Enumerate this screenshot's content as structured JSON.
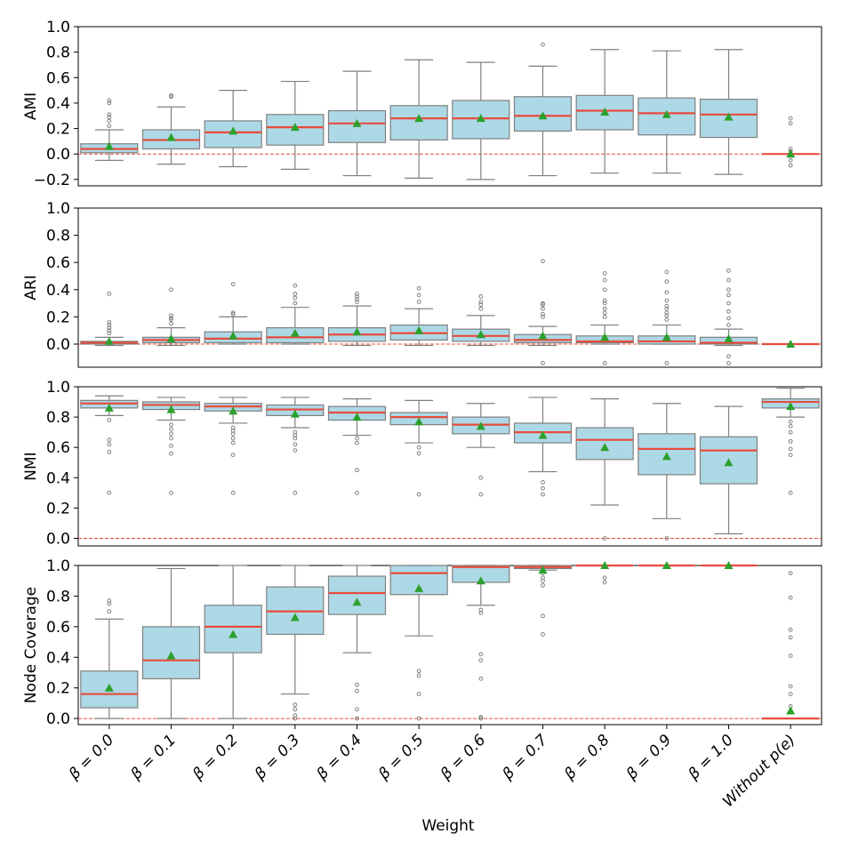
{
  "chart_data": {
    "type": "box",
    "xlabel": "Weight",
    "categories": [
      "β = 0.0",
      "β = 0.1",
      "β = 0.2",
      "β = 0.3",
      "β = 0.4",
      "β = 0.5",
      "β = 0.6",
      "β = 0.7",
      "β = 0.8",
      "β = 0.9",
      "β = 1.0",
      "Without p(e)"
    ],
    "colors": {
      "box_fill": "#add8e6",
      "box_edge": "#808080",
      "median": "#e74c3c",
      "mean": "#2ca02c",
      "refline": "#e74c3c",
      "outlier": "#808080"
    },
    "panels": [
      {
        "ylabel": "AMI",
        "ylim": [
          -0.25,
          1.0
        ],
        "yticks": [
          -0.2,
          0.0,
          0.2,
          0.4,
          0.6,
          0.8,
          1.0
        ],
        "tick_labels": [
          "−0.2",
          "0.0",
          "0.2",
          "0.4",
          "0.6",
          "0.8",
          "1.0"
        ],
        "boxes": [
          {
            "wlo": -0.05,
            "q1": 0.01,
            "med": 0.04,
            "q3": 0.08,
            "whi": 0.19,
            "mean": 0.06,
            "outliers": [
              0.22,
              0.26,
              0.29,
              0.31,
              0.4,
              0.42
            ]
          },
          {
            "wlo": -0.08,
            "q1": 0.04,
            "med": 0.11,
            "q3": 0.19,
            "whi": 0.37,
            "mean": 0.13,
            "outliers": [
              0.45,
              0.46
            ]
          },
          {
            "wlo": -0.1,
            "q1": 0.05,
            "med": 0.17,
            "q3": 0.26,
            "whi": 0.5,
            "mean": 0.18,
            "outliers": []
          },
          {
            "wlo": -0.12,
            "q1": 0.07,
            "med": 0.21,
            "q3": 0.31,
            "whi": 0.57,
            "mean": 0.21,
            "outliers": []
          },
          {
            "wlo": -0.17,
            "q1": 0.09,
            "med": 0.24,
            "q3": 0.34,
            "whi": 0.65,
            "mean": 0.24,
            "outliers": []
          },
          {
            "wlo": -0.19,
            "q1": 0.11,
            "med": 0.28,
            "q3": 0.38,
            "whi": 0.74,
            "mean": 0.28,
            "outliers": []
          },
          {
            "wlo": -0.2,
            "q1": 0.12,
            "med": 0.28,
            "q3": 0.42,
            "whi": 0.72,
            "mean": 0.28,
            "outliers": []
          },
          {
            "wlo": -0.17,
            "q1": 0.18,
            "med": 0.3,
            "q3": 0.45,
            "whi": 0.69,
            "mean": 0.3,
            "outliers": [
              0.86
            ]
          },
          {
            "wlo": -0.15,
            "q1": 0.19,
            "med": 0.34,
            "q3": 0.46,
            "whi": 0.82,
            "mean": 0.33,
            "outliers": []
          },
          {
            "wlo": -0.15,
            "q1": 0.15,
            "med": 0.32,
            "q3": 0.44,
            "whi": 0.81,
            "mean": 0.31,
            "outliers": []
          },
          {
            "wlo": -0.16,
            "q1": 0.13,
            "med": 0.31,
            "q3": 0.43,
            "whi": 0.82,
            "mean": 0.29,
            "outliers": []
          },
          {
            "wlo": 0.0,
            "q1": 0.0,
            "med": 0.0,
            "q3": 0.0,
            "whi": 0.0,
            "mean": 0.0,
            "outliers": [
              0.28,
              0.24,
              0.04,
              0.02,
              -0.05,
              -0.09
            ]
          }
        ]
      },
      {
        "ylabel": "ARI",
        "ylim": [
          -0.17,
          1.0
        ],
        "yticks": [
          0.0,
          0.2,
          0.4,
          0.6,
          0.8,
          1.0
        ],
        "tick_labels": [
          "0.0",
          "0.2",
          "0.4",
          "0.6",
          "0.8",
          "1.0"
        ],
        "boxes": [
          {
            "wlo": -0.01,
            "q1": 0.0,
            "med": 0.01,
            "q3": 0.02,
            "whi": 0.05,
            "mean": 0.02,
            "outliers": [
              0.08,
              0.1,
              0.12,
              0.14,
              0.16,
              0.37
            ]
          },
          {
            "wlo": -0.01,
            "q1": 0.01,
            "med": 0.03,
            "q3": 0.05,
            "whi": 0.12,
            "mean": 0.04,
            "outliers": [
              0.15,
              0.18,
              0.19,
              0.21,
              0.4
            ]
          },
          {
            "wlo": 0.0,
            "q1": 0.01,
            "med": 0.04,
            "q3": 0.09,
            "whi": 0.2,
            "mean": 0.06,
            "outliers": [
              0.22,
              0.23,
              0.44
            ]
          },
          {
            "wlo": 0.0,
            "q1": 0.01,
            "med": 0.05,
            "q3": 0.12,
            "whi": 0.27,
            "mean": 0.08,
            "outliers": [
              0.3,
              0.34,
              0.37,
              0.43
            ]
          },
          {
            "wlo": -0.01,
            "q1": 0.02,
            "med": 0.07,
            "q3": 0.12,
            "whi": 0.28,
            "mean": 0.09,
            "outliers": [
              0.31,
              0.33,
              0.35,
              0.37
            ]
          },
          {
            "wlo": -0.01,
            "q1": 0.03,
            "med": 0.08,
            "q3": 0.14,
            "whi": 0.26,
            "mean": 0.1,
            "outliers": [
              0.31,
              0.36,
              0.41
            ]
          },
          {
            "wlo": -0.01,
            "q1": 0.02,
            "med": 0.06,
            "q3": 0.11,
            "whi": 0.21,
            "mean": 0.07,
            "outliers": [
              0.26,
              0.29,
              0.31,
              0.35
            ]
          },
          {
            "wlo": -0.01,
            "q1": 0.01,
            "med": 0.03,
            "q3": 0.07,
            "whi": 0.13,
            "mean": 0.06,
            "outliers": [
              0.2,
              0.22,
              0.26,
              0.29,
              0.3,
              0.61,
              -0.14
            ]
          },
          {
            "wlo": 0.0,
            "q1": 0.01,
            "med": 0.02,
            "q3": 0.06,
            "whi": 0.14,
            "mean": 0.05,
            "outliers": [
              0.2,
              0.23,
              0.26,
              0.3,
              0.32,
              0.4,
              0.47,
              0.52,
              -0.14
            ]
          },
          {
            "wlo": 0.0,
            "q1": 0.0,
            "med": 0.02,
            "q3": 0.06,
            "whi": 0.14,
            "mean": 0.05,
            "outliers": [
              0.18,
              0.21,
              0.23,
              0.26,
              0.28,
              0.32,
              0.38,
              0.46,
              0.53,
              -0.14
            ]
          },
          {
            "wlo": -0.01,
            "q1": 0.0,
            "med": 0.01,
            "q3": 0.05,
            "whi": 0.11,
            "mean": 0.04,
            "outliers": [
              0.14,
              0.19,
              0.24,
              0.3,
              0.36,
              0.4,
              0.47,
              0.54,
              -0.09,
              -0.14
            ]
          },
          {
            "wlo": 0.0,
            "q1": 0.0,
            "med": 0.0,
            "q3": 0.0,
            "whi": 0.0,
            "mean": 0.0,
            "outliers": []
          }
        ]
      },
      {
        "ylabel": "NMI",
        "ylim": [
          -0.05,
          1.0
        ],
        "yticks": [
          0.0,
          0.2,
          0.4,
          0.6,
          0.8,
          1.0
        ],
        "tick_labels": [
          "0.0",
          "0.2",
          "0.4",
          "0.6",
          "0.8",
          "1.0"
        ],
        "boxes": [
          {
            "wlo": 0.81,
            "q1": 0.86,
            "med": 0.89,
            "q3": 0.91,
            "whi": 0.94,
            "mean": 0.86,
            "outliers": [
              0.78,
              0.65,
              0.62,
              0.57,
              0.3
            ]
          },
          {
            "wlo": 0.78,
            "q1": 0.85,
            "med": 0.88,
            "q3": 0.9,
            "whi": 0.93,
            "mean": 0.85,
            "outliers": [
              0.75,
              0.72,
              0.69,
              0.66,
              0.61,
              0.56,
              0.3
            ]
          },
          {
            "wlo": 0.76,
            "q1": 0.84,
            "med": 0.87,
            "q3": 0.89,
            "whi": 0.93,
            "mean": 0.84,
            "outliers": [
              0.73,
              0.71,
              0.69,
              0.66,
              0.63,
              0.55,
              0.3
            ]
          },
          {
            "wlo": 0.73,
            "q1": 0.81,
            "med": 0.85,
            "q3": 0.88,
            "whi": 0.93,
            "mean": 0.82,
            "outliers": [
              0.7,
              0.68,
              0.66,
              0.62,
              0.58,
              0.3
            ]
          },
          {
            "wlo": 0.68,
            "q1": 0.78,
            "med": 0.83,
            "q3": 0.87,
            "whi": 0.92,
            "mean": 0.8,
            "outliers": [
              0.66,
              0.63,
              0.45,
              0.3
            ]
          },
          {
            "wlo": 0.63,
            "q1": 0.75,
            "med": 0.8,
            "q3": 0.83,
            "whi": 0.91,
            "mean": 0.77,
            "outliers": [
              0.6,
              0.56,
              0.29
            ]
          },
          {
            "wlo": 0.6,
            "q1": 0.69,
            "med": 0.75,
            "q3": 0.8,
            "whi": 0.89,
            "mean": 0.74,
            "outliers": [
              0.4,
              0.29
            ]
          },
          {
            "wlo": 0.44,
            "q1": 0.63,
            "med": 0.7,
            "q3": 0.76,
            "whi": 0.93,
            "mean": 0.68,
            "outliers": [
              0.37,
              0.33,
              0.29
            ]
          },
          {
            "wlo": 0.22,
            "q1": 0.52,
            "med": 0.65,
            "q3": 0.73,
            "whi": 0.92,
            "mean": 0.6,
            "outliers": [
              0.0
            ]
          },
          {
            "wlo": 0.13,
            "q1": 0.42,
            "med": 0.59,
            "q3": 0.69,
            "whi": 0.89,
            "mean": 0.54,
            "outliers": [
              0.0
            ]
          },
          {
            "wlo": 0.03,
            "q1": 0.36,
            "med": 0.58,
            "q3": 0.67,
            "whi": 0.87,
            "mean": 0.5,
            "outliers": []
          },
          {
            "wlo": 0.8,
            "q1": 0.86,
            "med": 0.9,
            "q3": 0.92,
            "whi": 0.99,
            "mean": 0.87,
            "outliers": [
              0.77,
              0.74,
              0.7,
              0.64,
              0.59,
              0.55,
              0.3
            ]
          }
        ]
      },
      {
        "ylabel": "Node Coverage",
        "ylim": [
          -0.04,
          1.0
        ],
        "yticks": [
          0.0,
          0.2,
          0.4,
          0.6,
          0.8,
          1.0
        ],
        "tick_labels": [
          "0.0",
          "0.2",
          "0.4",
          "0.6",
          "0.8",
          "1.0"
        ],
        "boxes": [
          {
            "wlo": 0.0,
            "q1": 0.07,
            "med": 0.16,
            "q3": 0.31,
            "whi": 0.65,
            "mean": 0.2,
            "outliers": [
              0.7,
              0.75,
              0.77
            ]
          },
          {
            "wlo": 0.0,
            "q1": 0.26,
            "med": 0.38,
            "q3": 0.6,
            "whi": 0.98,
            "mean": 0.41,
            "outliers": []
          },
          {
            "wlo": 0.0,
            "q1": 0.43,
            "med": 0.6,
            "q3": 0.74,
            "whi": 1.0,
            "mean": 0.55,
            "outliers": []
          },
          {
            "wlo": 0.16,
            "q1": 0.55,
            "med": 0.7,
            "q3": 0.86,
            "whi": 1.0,
            "mean": 0.66,
            "outliers": [
              0.09,
              0.06,
              0.02,
              0.0
            ]
          },
          {
            "wlo": 0.43,
            "q1": 0.68,
            "med": 0.82,
            "q3": 0.93,
            "whi": 1.0,
            "mean": 0.76,
            "outliers": [
              0.22,
              0.18,
              0.06,
              0.0
            ]
          },
          {
            "wlo": 0.54,
            "q1": 0.81,
            "med": 0.95,
            "q3": 1.0,
            "whi": 1.0,
            "mean": 0.85,
            "outliers": [
              0.31,
              0.28,
              0.16,
              0.0
            ]
          },
          {
            "wlo": 0.74,
            "q1": 0.89,
            "med": 0.99,
            "q3": 1.0,
            "whi": 1.0,
            "mean": 0.9,
            "outliers": [
              0.71,
              0.69,
              0.42,
              0.38,
              0.26,
              0.01,
              0.0
            ]
          },
          {
            "wlo": 0.97,
            "q1": 0.98,
            "med": 0.99,
            "q3": 1.0,
            "whi": 1.0,
            "mean": 0.97,
            "outliers": [
              0.95,
              0.92,
              0.9,
              0.87,
              0.67,
              0.55
            ]
          },
          {
            "wlo": 1.0,
            "q1": 1.0,
            "med": 1.0,
            "q3": 1.0,
            "whi": 1.0,
            "mean": 1.0,
            "outliers": [
              0.92,
              0.89
            ]
          },
          {
            "wlo": 1.0,
            "q1": 1.0,
            "med": 1.0,
            "q3": 1.0,
            "whi": 1.0,
            "mean": 1.0,
            "outliers": []
          },
          {
            "wlo": 1.0,
            "q1": 1.0,
            "med": 1.0,
            "q3": 1.0,
            "whi": 1.0,
            "mean": 1.0,
            "outliers": []
          },
          {
            "wlo": 0.0,
            "q1": 0.0,
            "med": 0.0,
            "q3": 0.0,
            "whi": 0.0,
            "mean": 0.05,
            "outliers": [
              0.95,
              0.79,
              0.58,
              0.53,
              0.41,
              0.21,
              0.16,
              0.08
            ]
          }
        ]
      }
    ]
  }
}
